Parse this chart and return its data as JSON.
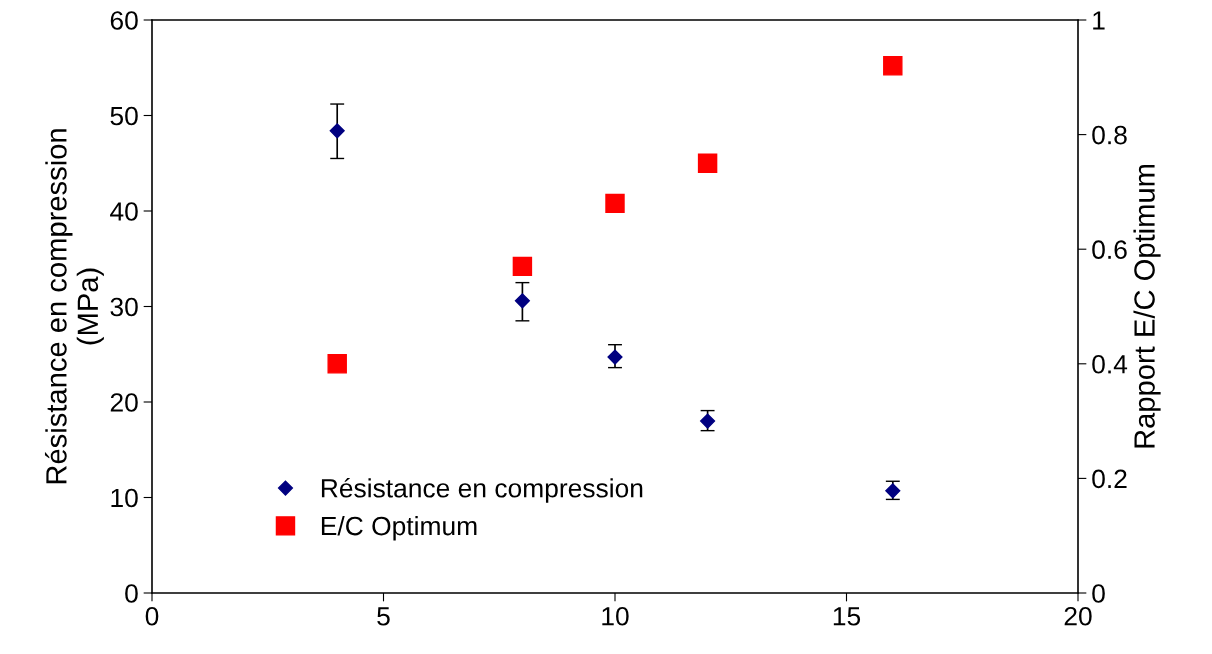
{
  "chart_data": {
    "type": "scatter",
    "ylabel": "Résistance en compression\n(MPa)",
    "y2label": "Rapport E/C Optimum",
    "x": [
      4,
      8,
      10,
      12,
      16
    ],
    "series": [
      {
        "name": "Résistance en compression",
        "color": "#000080",
        "marker": "diamond",
        "values": [
          48.4,
          30.6,
          24.7,
          18.0,
          10.7
        ],
        "errors": [
          [
            45.5,
            51.2
          ],
          [
            28.5,
            32.5
          ],
          [
            23.6,
            26.0
          ],
          [
            17.0,
            19.1
          ],
          [
            9.8,
            11.7
          ]
        ]
      },
      {
        "name": "E/C Optimum",
        "color": "#ff0000",
        "marker": "square",
        "axis": "y2",
        "values": [
          0.4,
          0.57,
          0.68,
          0.75,
          0.92
        ]
      }
    ],
    "xlim": [
      0,
      20
    ],
    "xticks": [
      0,
      5,
      10,
      15,
      20
    ],
    "ylim": [
      0,
      60
    ],
    "yticks": [
      0,
      10,
      20,
      30,
      40,
      50,
      60
    ],
    "y2lim": [
      0,
      1
    ],
    "y2ticks": [
      0,
      0.2,
      0.4,
      0.6,
      0.8,
      1
    ],
    "grid": false,
    "legend": "bottom left"
  }
}
